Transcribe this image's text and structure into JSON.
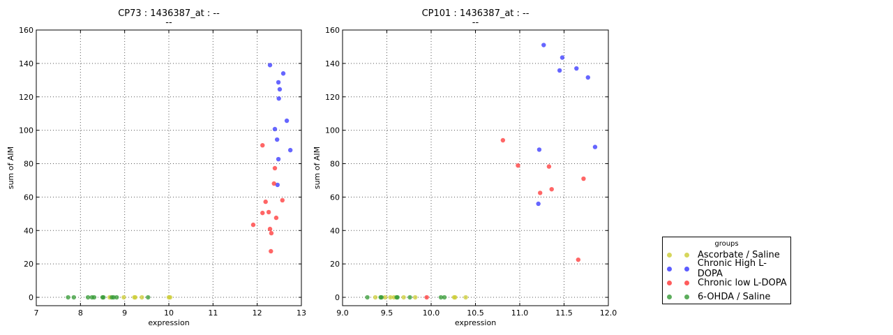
{
  "chart_data": [
    {
      "type": "scatter",
      "title": "CP73 : 1436387_at : --",
      "subtitle": "--",
      "xlabel": "expression",
      "ylabel": "sum of AIM",
      "xlim": [
        7,
        13
      ],
      "ylim": [
        -5,
        160
      ],
      "xticks": [
        "7",
        "8",
        "9",
        "10",
        "11",
        "12",
        "13"
      ],
      "yticks": [
        "0",
        "20",
        "40",
        "60",
        "80",
        "100",
        "120",
        "140",
        "160"
      ],
      "grid": true,
      "series": [
        {
          "name": "Ascorbate / Saline",
          "color": "#cccc33",
          "x": [
            8.66,
            8.98,
            9.22,
            9.24,
            9.39,
            10.0,
            10.03
          ],
          "y": [
            0,
            0,
            0,
            0,
            0,
            0,
            0
          ]
        },
        {
          "name": "Chronic High L-DOPA",
          "color": "#3333ff",
          "x": [
            12.29,
            12.59,
            12.48,
            12.51,
            12.49,
            12.67,
            12.4,
            12.45,
            12.75,
            12.48,
            12.46
          ],
          "y": [
            139,
            134,
            128.7,
            124.5,
            119,
            105.7,
            100.7,
            94.4,
            88.1,
            82.7,
            67.3
          ]
        },
        {
          "name": "Chronic low L-DOPA",
          "color": "#ff3333",
          "x": [
            12.12,
            12.4,
            12.38,
            12.19,
            12.57,
            12.12,
            12.26,
            12.43,
            11.91,
            12.29,
            12.32,
            12.31
          ],
          "y": [
            91,
            77.3,
            68.1,
            57.2,
            58.1,
            50.5,
            51,
            47.6,
            43.4,
            40.9,
            38.4,
            27.6
          ]
        },
        {
          "name": "6-OHDA / Saline",
          "color": "#339933",
          "x": [
            7.72,
            7.85,
            8.17,
            8.26,
            8.31,
            8.5,
            8.52,
            8.71,
            8.75,
            8.82,
            9.53
          ],
          "y": [
            0,
            0,
            0,
            0,
            0,
            0,
            0,
            0,
            0,
            0,
            0
          ]
        }
      ]
    },
    {
      "type": "scatter",
      "title": "CP101 : 1436387_at : --",
      "subtitle": "--",
      "xlabel": "expression",
      "ylabel": "sum of AIM",
      "xlim": [
        9.0,
        12.0
      ],
      "ylim": [
        -5,
        160
      ],
      "xticks": [
        "9.0",
        "9.5",
        "10.0",
        "10.5",
        "11.0",
        "11.5",
        "12.0"
      ],
      "yticks": [
        "0",
        "20",
        "40",
        "60",
        "80",
        "100",
        "120",
        "140",
        "160"
      ],
      "grid": true,
      "series": [
        {
          "name": "Ascorbate / Saline",
          "color": "#cccc33",
          "x": [
            9.37,
            9.48,
            9.54,
            9.58,
            9.69,
            9.82,
            10.26,
            10.27,
            10.39
          ],
          "y": [
            0,
            0,
            0,
            0,
            0,
            0,
            0,
            0,
            0
          ]
        },
        {
          "name": "Chronic High L-DOPA",
          "color": "#3333ff",
          "x": [
            11.27,
            11.48,
            11.45,
            11.64,
            11.77,
            11.22,
            11.85,
            11.21
          ],
          "y": [
            151,
            143.5,
            135.8,
            137,
            131.6,
            88.4,
            90,
            56
          ]
        },
        {
          "name": "Chronic low L-DOPA",
          "color": "#ff3333",
          "x": [
            10.81,
            10.98,
            11.33,
            11.36,
            11.23,
            11.72,
            11.66,
            9.95
          ],
          "y": [
            94,
            78.9,
            78.3,
            64.7,
            62.5,
            71,
            22.5,
            0
          ]
        },
        {
          "name": "6-OHDA / Saline",
          "color": "#339933",
          "x": [
            9.28,
            9.43,
            9.44,
            9.61,
            9.62,
            9.76,
            10.11,
            10.15
          ],
          "y": [
            0,
            0,
            0,
            0,
            0,
            0,
            0,
            0
          ]
        }
      ]
    }
  ],
  "legend": {
    "title": "groups",
    "placement": "lower-right, outside",
    "items": [
      {
        "label": "Ascorbate / Saline",
        "color": "#cccc33"
      },
      {
        "label": "Chronic High L-DOPA",
        "color": "#3333ff"
      },
      {
        "label": "Chronic low L-DOPA",
        "color": "#ff3333"
      },
      {
        "label": "6-OHDA / Saline",
        "color": "#339933"
      }
    ]
  }
}
